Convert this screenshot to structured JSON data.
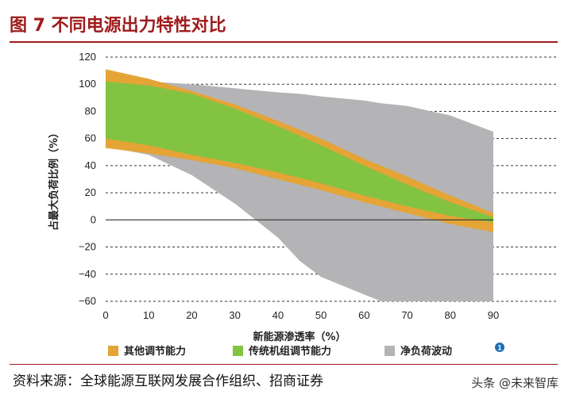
{
  "figure": {
    "title": "图 7 不同电源出力特性对比",
    "source": "资料来源：全球能源互联网发展合作组织、招商证券",
    "watermark": "头条 @未来智库"
  },
  "chart_data": {
    "type": "area",
    "xlabel": "新能源渗透率（%）",
    "ylabel": "占最大负荷比例（%）",
    "xlim": [
      0,
      90
    ],
    "ylim": [
      -60,
      120
    ],
    "x_ticks": [
      0,
      10,
      20,
      30,
      40,
      50,
      60,
      70,
      80,
      90
    ],
    "y_ticks": [
      -60,
      -40,
      -20,
      0,
      20,
      40,
      60,
      80,
      100,
      120
    ],
    "grid": "horizontal dashed",
    "legend_position": "bottom",
    "series": [
      {
        "name": "净负荷波动",
        "color": "#b4b4b6",
        "x": [
          0,
          10,
          20,
          30,
          40,
          45,
          50,
          60,
          64,
          70,
          80,
          90
        ],
        "upper": [
          105,
          102,
          100,
          97,
          94,
          93,
          91,
          88,
          86,
          84,
          77,
          65
        ],
        "lower": [
          54,
          48,
          33,
          12,
          -13,
          -30,
          -42,
          -55,
          -60,
          null,
          null,
          null
        ]
      },
      {
        "name": "其他调节能力",
        "color": "#e4a436",
        "x": [
          0,
          10,
          20,
          30,
          40,
          50,
          60,
          70,
          80,
          90
        ],
        "upper": [
          111,
          104,
          95,
          85,
          73,
          60,
          45,
          32,
          18,
          5
        ],
        "lower": [
          53,
          49,
          44,
          38,
          30,
          22,
          13,
          5,
          -3,
          -9
        ]
      },
      {
        "name": "传统机组调节能力",
        "color": "#82c341",
        "x": [
          0,
          10,
          20,
          30,
          40,
          50,
          60,
          70,
          80,
          90
        ],
        "upper": [
          102,
          99,
          93,
          82,
          69,
          55,
          40,
          26,
          13,
          2
        ],
        "lower": [
          60,
          55,
          48,
          42,
          35,
          27,
          18,
          10,
          3,
          -2
        ]
      }
    ],
    "legend_order": [
      "其他调节能力",
      "传统机组调节能力",
      "净负荷波动"
    ],
    "legend_note": "1"
  }
}
